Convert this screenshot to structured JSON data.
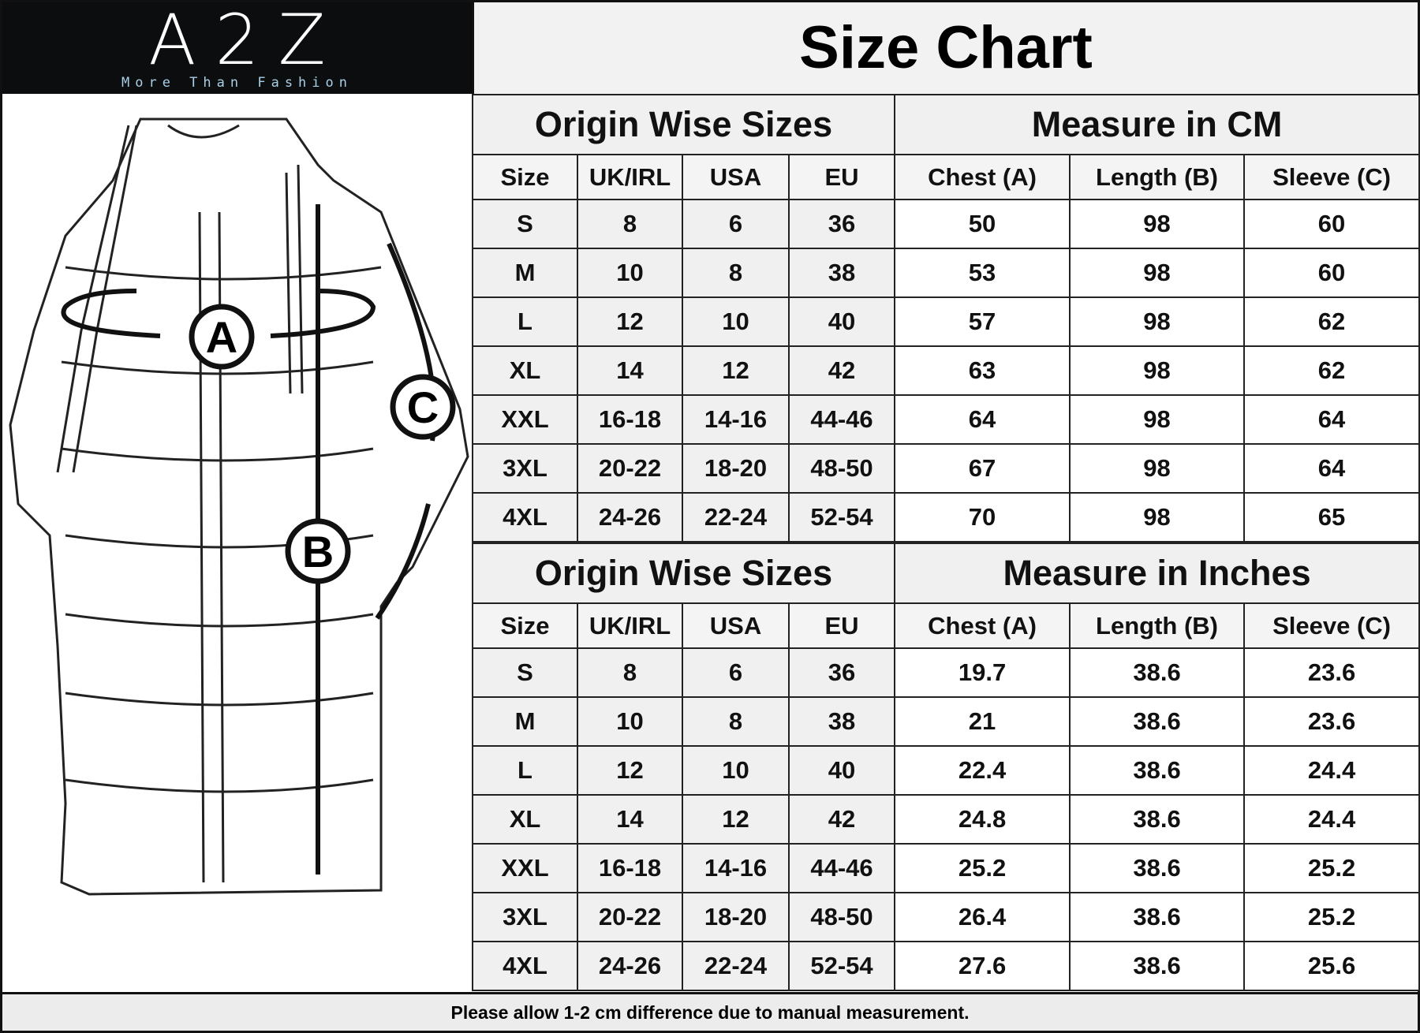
{
  "logo": {
    "brand": "A2Z",
    "tagline": "More Than Fashion"
  },
  "title": "Size Chart",
  "diagram": {
    "markers": [
      "A",
      "B",
      "C"
    ]
  },
  "cm_table": {
    "left_header": "Origin Wise Sizes",
    "right_header": "Measure in CM",
    "columns": [
      "Size",
      "UK/IRL",
      "USA",
      "EU",
      "Chest (A)",
      "Length (B)",
      "Sleeve (C)"
    ],
    "rows": [
      [
        "S",
        "8",
        "6",
        "36",
        "50",
        "98",
        "60"
      ],
      [
        "M",
        "10",
        "8",
        "38",
        "53",
        "98",
        "60"
      ],
      [
        "L",
        "12",
        "10",
        "40",
        "57",
        "98",
        "62"
      ],
      [
        "XL",
        "14",
        "12",
        "42",
        "63",
        "98",
        "62"
      ],
      [
        "XXL",
        "16-18",
        "14-16",
        "44-46",
        "64",
        "98",
        "64"
      ],
      [
        "3XL",
        "20-22",
        "18-20",
        "48-50",
        "67",
        "98",
        "64"
      ],
      [
        "4XL",
        "24-26",
        "22-24",
        "52-54",
        "70",
        "98",
        "65"
      ]
    ]
  },
  "inch_table": {
    "left_header": "Origin Wise Sizes",
    "right_header": "Measure in Inches",
    "columns": [
      "Size",
      "UK/IRL",
      "USA",
      "EU",
      "Chest (A)",
      "Length (B)",
      "Sleeve (C)"
    ],
    "rows": [
      [
        "S",
        "8",
        "6",
        "36",
        "19.7",
        "38.6",
        "23.6"
      ],
      [
        "M",
        "10",
        "8",
        "38",
        "21",
        "38.6",
        "23.6"
      ],
      [
        "L",
        "12",
        "10",
        "40",
        "22.4",
        "38.6",
        "24.4"
      ],
      [
        "XL",
        "14",
        "12",
        "42",
        "24.8",
        "38.6",
        "24.4"
      ],
      [
        "XXL",
        "16-18",
        "14-16",
        "44-46",
        "25.2",
        "38.6",
        "25.2"
      ],
      [
        "3XL",
        "20-22",
        "18-20",
        "48-50",
        "26.4",
        "38.6",
        "25.2"
      ],
      [
        "4XL",
        "24-26",
        "22-24",
        "52-54",
        "27.6",
        "38.6",
        "25.6"
      ]
    ]
  },
  "footer": "Please allow 1-2 cm difference due to manual measurement."
}
